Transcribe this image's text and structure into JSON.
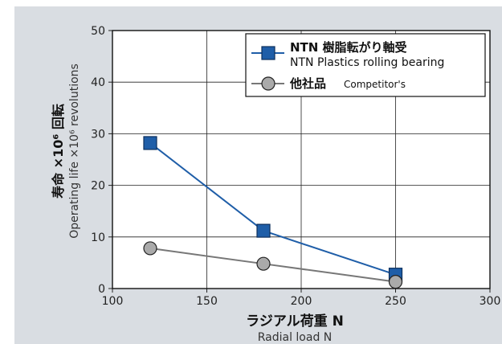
{
  "chart_data": {
    "type": "line",
    "x": [
      120,
      180,
      250
    ],
    "xlim": [
      100,
      300
    ],
    "ylim": [
      0,
      50
    ],
    "xticks": [
      "100",
      "150",
      "200",
      "250",
      "300"
    ],
    "yticks": [
      "0",
      "10",
      "20",
      "30",
      "40",
      "50"
    ],
    "grid": true,
    "legend_position": "top-right",
    "ylabel_ja": "寿命 ×10⁶ 回転",
    "ylabel_en": "Operating life ×10⁶ revolutions",
    "xlabel_ja": "ラジアル荷重  N",
    "xlabel_en": "Radial load  N",
    "series": [
      {
        "name_ja": "NTN 樹脂転がり軸受",
        "name_en": "NTN Plastics rolling bearing",
        "values": [
          28.2,
          11.2,
          2.7
        ],
        "color": "#1f5ea8",
        "marker": "square"
      },
      {
        "name_ja": "他社品",
        "name_en": "Competitor's",
        "values": [
          7.8,
          4.8,
          1.3
        ],
        "color": "#777777",
        "marker": "circle"
      }
    ]
  }
}
